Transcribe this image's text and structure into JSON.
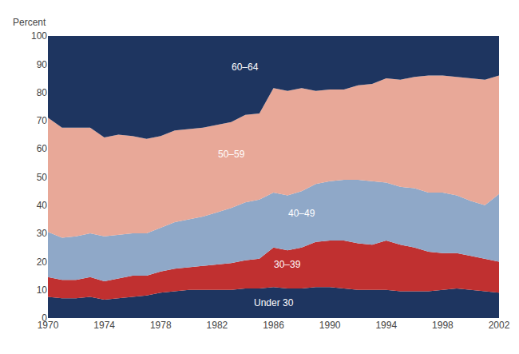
{
  "chart_data": {
    "type": "area",
    "stacked": true,
    "ylabel": "Percent",
    "x": [
      1970,
      1971,
      1972,
      1973,
      1974,
      1975,
      1976,
      1977,
      1978,
      1979,
      1980,
      1981,
      1982,
      1983,
      1984,
      1985,
      1986,
      1987,
      1988,
      1989,
      1990,
      1991,
      1992,
      1993,
      1994,
      1995,
      1996,
      1997,
      1998,
      1999,
      2000,
      2001,
      2002
    ],
    "series": [
      {
        "color": "#1e3560",
        "values": [
          7.5,
          7.0,
          7.0,
          7.5,
          6.5,
          7.0,
          7.5,
          8.0,
          9.0,
          9.5,
          10.0,
          10.0,
          10.0,
          10.0,
          10.5,
          10.5,
          11.0,
          10.5,
          10.5,
          11.0,
          11.0,
          10.5,
          10.0,
          10.0,
          10.0,
          9.5,
          9.5,
          9.5,
          10.0,
          10.5,
          10.0,
          9.5,
          9.0
        ]
      },
      {
        "color": "#c03030",
        "values": [
          7.0,
          6.5,
          6.5,
          7.0,
          6.5,
          7.0,
          7.5,
          7.0,
          7.5,
          8.0,
          8.0,
          8.5,
          9.0,
          9.5,
          10.0,
          10.5,
          14.0,
          13.5,
          14.5,
          16.0,
          16.5,
          17.0,
          16.5,
          16.0,
          17.5,
          16.5,
          15.5,
          14.0,
          13.0,
          12.5,
          12.0,
          11.5,
          11.0
        ]
      },
      {
        "color": "#8fa8c8",
        "values": [
          16.0,
          15.0,
          15.5,
          15.5,
          16.0,
          15.5,
          15.0,
          15.0,
          15.5,
          16.5,
          17.0,
          17.5,
          18.5,
          19.5,
          20.5,
          21.0,
          19.5,
          19.5,
          20.0,
          20.5,
          21.0,
          21.5,
          22.5,
          22.5,
          20.5,
          20.5,
          21.0,
          21.0,
          21.5,
          20.5,
          19.5,
          19.0,
          24.0
        ]
      },
      {
        "color": "#e8a898",
        "values": [
          40.5,
          39.0,
          38.5,
          37.5,
          35.0,
          35.5,
          34.5,
          33.5,
          32.5,
          32.5,
          32.0,
          31.5,
          31.0,
          30.5,
          31.0,
          30.5,
          37.0,
          37.0,
          36.5,
          33.0,
          32.5,
          32.0,
          33.5,
          34.5,
          37.0,
          38.0,
          39.5,
          41.5,
          41.5,
          42.0,
          43.5,
          44.5,
          42.0
        ]
      },
      {
        "color": "#1e3560",
        "values": [
          29.0,
          32.5,
          32.5,
          32.5,
          36.0,
          35.0,
          35.5,
          36.5,
          35.5,
          33.5,
          33.0,
          32.5,
          31.5,
          30.5,
          28.0,
          27.5,
          18.5,
          19.5,
          18.5,
          19.5,
          19.0,
          19.0,
          17.5,
          17.0,
          15.0,
          15.5,
          14.5,
          14.0,
          14.0,
          14.5,
          15.0,
          15.5,
          14.0
        ]
      }
    ],
    "annotations": [
      {
        "text": "Under 30",
        "x": 1986,
        "y": 5.5
      },
      {
        "text": "30–39",
        "x": 1987,
        "y": 19
      },
      {
        "text": "40–49",
        "x": 1988,
        "y": 37
      },
      {
        "text": "50–59",
        "x": 1983,
        "y": 58
      },
      {
        "text": "60–64",
        "x": 1984,
        "y": 89
      }
    ],
    "xlim": [
      1970,
      2002
    ],
    "xticks": [
      1970,
      1974,
      1978,
      1982,
      1986,
      1990,
      1994,
      1998,
      2002
    ],
    "ylim": [
      0,
      100
    ],
    "yticks": [
      0,
      10,
      20,
      30,
      40,
      50,
      60,
      70,
      80,
      90,
      100
    ],
    "grid": false
  }
}
